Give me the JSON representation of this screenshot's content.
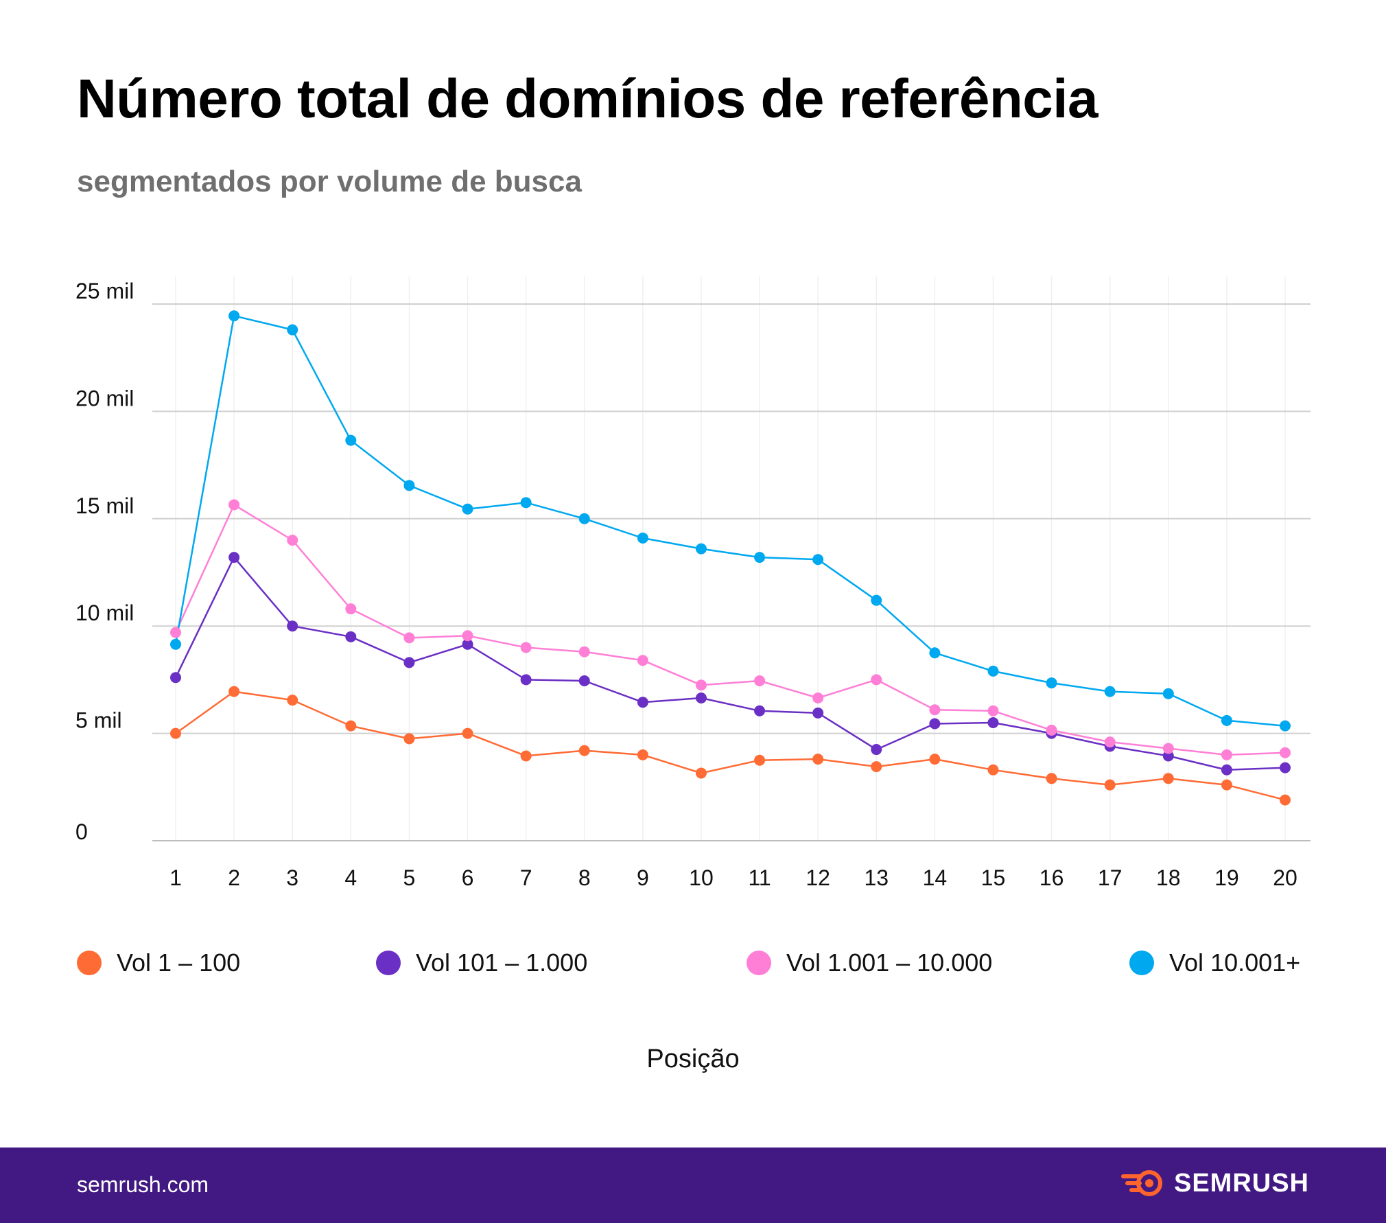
{
  "header": {
    "title": "Número total de domínios de referência",
    "subtitle": "segmentados por volume de busca"
  },
  "footer": {
    "site": "semrush.com",
    "brand": "SEMRUSH"
  },
  "colors": {
    "Vol 1 – 100": "#ff6b35",
    "Vol 101 – 1.000": "#6a2fc4",
    "Vol 1.001 – 10.000": "#ff7fd6",
    "Vol 10.001+": "#00a8f0",
    "footer_bg": "#421983",
    "brand_icon": "#ff642d"
  },
  "chart_data": {
    "type": "line",
    "title": "Número total de domínios de referência",
    "subtitle": "segmentados por volume de busca",
    "xlabel": "Posição",
    "ylabel": "",
    "x": [
      1,
      2,
      3,
      4,
      5,
      6,
      7,
      8,
      9,
      10,
      11,
      12,
      13,
      14,
      15,
      16,
      17,
      18,
      19,
      20
    ],
    "ylim": [
      0,
      25000
    ],
    "yticks": [
      0,
      5000,
      10000,
      15000,
      20000,
      25000
    ],
    "ytick_labels": [
      "0",
      "5 mil",
      "10 mil",
      "15 mil",
      "20 mil",
      "25 mil"
    ],
    "grid": true,
    "legend_position": "bottom",
    "series": [
      {
        "name": "Vol 1 – 100",
        "values": [
          5000,
          6950,
          6550,
          5350,
          4750,
          5000,
          3950,
          4200,
          4000,
          3150,
          3750,
          3800,
          3450,
          3800,
          3300,
          2900,
          2600,
          2900,
          2600,
          1900
        ]
      },
      {
        "name": "Vol 101 – 1.000",
        "values": [
          7600,
          13200,
          10000,
          9500,
          8300,
          9150,
          7500,
          7450,
          6450,
          6650,
          6050,
          5950,
          4250,
          5450,
          5500,
          5000,
          4400,
          3950,
          3300,
          3400
        ]
      },
      {
        "name": "Vol 1.001 – 10.000",
        "values": [
          9700,
          15650,
          14000,
          10800,
          9450,
          9550,
          9000,
          8800,
          8400,
          7250,
          7450,
          6650,
          7500,
          6100,
          6050,
          5150,
          4600,
          4300,
          4000,
          4100
        ]
      },
      {
        "name": "Vol 10.001+",
        "values": [
          9150,
          24450,
          23800,
          18650,
          16550,
          15450,
          15750,
          15000,
          14100,
          13600,
          13200,
          13100,
          11200,
          8750,
          7900,
          7350,
          6950,
          6850,
          5600,
          5350
        ]
      }
    ]
  }
}
